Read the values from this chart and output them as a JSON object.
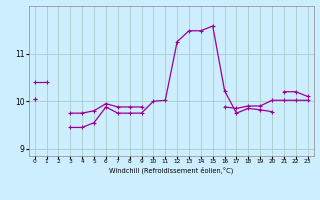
{
  "xlabel": "Windchill (Refroidissement éolien,°C)",
  "background_color": "#cceeff",
  "grid_color": "#aacccc",
  "line_color": "#990099",
  "x_hours": [
    0,
    1,
    2,
    3,
    4,
    5,
    6,
    7,
    8,
    9,
    10,
    11,
    12,
    13,
    14,
    15,
    16,
    17,
    18,
    19,
    20,
    21,
    22,
    23
  ],
  "series1": [
    10.4,
    10.4,
    null,
    null,
    null,
    null,
    null,
    null,
    null,
    null,
    null,
    null,
    null,
    null,
    null,
    null,
    null,
    null,
    null,
    null,
    null,
    null,
    null,
    null
  ],
  "series2": [
    10.05,
    null,
    null,
    null,
    null,
    null,
    null,
    null,
    null,
    null,
    null,
    null,
    null,
    null,
    null,
    null,
    null,
    null,
    null,
    null,
    null,
    null,
    null,
    null
  ],
  "series3": [
    null,
    null,
    null,
    9.45,
    9.45,
    9.55,
    9.88,
    9.75,
    9.75,
    9.75,
    10.0,
    10.02,
    11.25,
    11.48,
    11.48,
    11.58,
    10.22,
    9.75,
    9.85,
    9.82,
    9.78,
    null,
    null,
    null
  ],
  "series4": [
    10.05,
    null,
    null,
    9.75,
    9.75,
    9.8,
    9.95,
    9.88,
    9.88,
    9.88,
    null,
    null,
    null,
    null,
    null,
    null,
    9.88,
    9.85,
    9.9,
    9.9,
    10.02,
    10.02,
    10.02,
    10.02
  ],
  "series5": [
    null,
    null,
    null,
    null,
    null,
    null,
    null,
    null,
    null,
    null,
    null,
    null,
    null,
    null,
    null,
    null,
    null,
    null,
    null,
    null,
    null,
    10.2,
    10.2,
    10.1
  ],
  "ylim": [
    8.85,
    12.0
  ],
  "yticks": [
    9,
    10,
    11
  ],
  "xticks": [
    0,
    1,
    2,
    3,
    4,
    5,
    6,
    7,
    8,
    9,
    10,
    11,
    12,
    13,
    14,
    15,
    16,
    17,
    18,
    19,
    20,
    21,
    22,
    23
  ]
}
